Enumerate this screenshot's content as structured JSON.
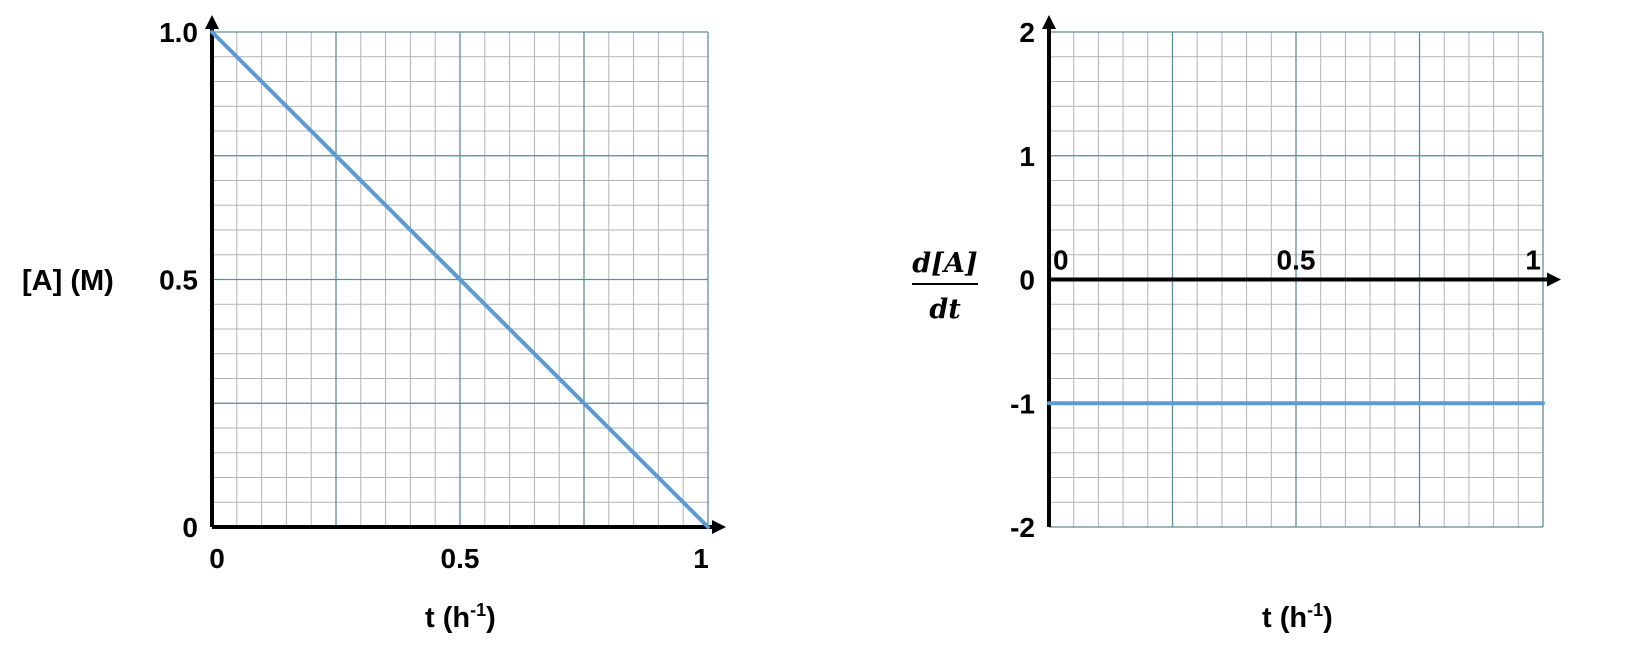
{
  "chart_data": [
    {
      "type": "line",
      "title": "",
      "xlabel_main": "t (h",
      "xlabel_sup": "-1",
      "xlabel_close": ")",
      "ylabel": "[A] (M)",
      "xlim": [
        0,
        1
      ],
      "ylim": [
        0,
        1
      ],
      "x_ticks": [
        {
          "value": 0,
          "label": "0"
        },
        {
          "value": 0.5,
          "label": "0.5"
        },
        {
          "value": 1,
          "label": "1"
        }
      ],
      "y_ticks": [
        {
          "value": 0,
          "label": "0"
        },
        {
          "value": 0.5,
          "label": "0.5"
        },
        {
          "value": 1,
          "label": "1.0"
        }
      ],
      "grid": true,
      "series": [
        {
          "x": [
            0,
            1
          ],
          "y": [
            1.0,
            0.0
          ],
          "color": "#5b9bd5"
        }
      ]
    },
    {
      "type": "line",
      "title": "",
      "xlabel_main": "t (h",
      "xlabel_sup": "-1",
      "xlabel_close": ")",
      "ylabel_num": "d[A]",
      "ylabel_den": "dt",
      "xlim": [
        0,
        1
      ],
      "ylim": [
        -2,
        2
      ],
      "x_ticks": [
        {
          "value": 0,
          "label": "0"
        },
        {
          "value": 0.5,
          "label": "0.5"
        },
        {
          "value": 1,
          "label": "1"
        }
      ],
      "y_ticks": [
        {
          "value": -2,
          "label": "-2"
        },
        {
          "value": -1,
          "label": "-1"
        },
        {
          "value": 0,
          "label": "0"
        },
        {
          "value": 1,
          "label": "1"
        },
        {
          "value": 2,
          "label": "2"
        }
      ],
      "grid": true,
      "series": [
        {
          "x": [
            0,
            1
          ],
          "y": [
            -1,
            -1
          ],
          "color": "#5b9bd5"
        }
      ]
    }
  ],
  "colors": {
    "minor_grid": "#b3b3b3",
    "major_grid": "#5f8f95",
    "axis": "#000000",
    "line": "#5b9bd5"
  }
}
